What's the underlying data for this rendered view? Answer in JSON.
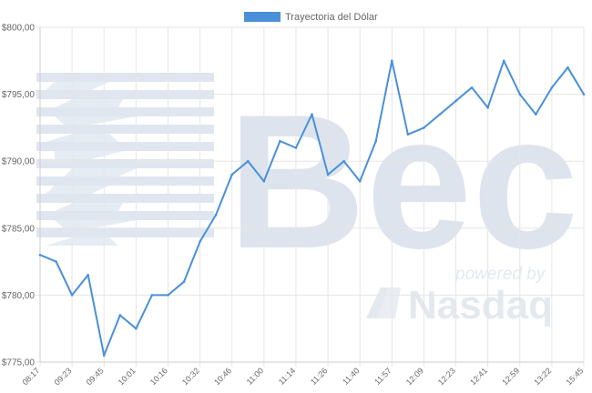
{
  "chart_data": {
    "type": "line",
    "title": "",
    "xlabel": "",
    "ylabel": "",
    "legend": {
      "position": "top-center",
      "entries": [
        "Trayectoria del Dólar"
      ]
    },
    "grid": true,
    "ylim": [
      775,
      800
    ],
    "y_ticks": [
      "$775,00",
      "$780,00",
      "$785,00",
      "$790,00",
      "$795,00",
      "$800,00"
    ],
    "x_ticks": [
      "08:17",
      "09:23",
      "09:45",
      "10:01",
      "10:16",
      "10:32",
      "10:46",
      "11:00",
      "11:14",
      "11:26",
      "11:40",
      "11:57",
      "12:09",
      "12:23",
      "12:41",
      "12:59",
      "13:22",
      "15:45"
    ],
    "series": [
      {
        "name": "Trayectoria del Dólar",
        "color": "#4a90d9",
        "x_index": [
          0,
          0.5,
          1,
          1.5,
          2,
          2.5,
          3,
          3.5,
          4,
          4.5,
          5,
          5.5,
          6,
          6.5,
          7,
          7.5,
          8,
          8.5,
          9,
          9.5,
          10,
          10.5,
          11,
          11.5,
          12,
          12.5,
          13,
          13.5,
          14,
          14.5,
          15,
          15.5,
          16,
          16.5,
          17
        ],
        "values": [
          783.0,
          782.5,
          780.0,
          781.5,
          775.5,
          778.5,
          777.5,
          780.0,
          780.0,
          781.0,
          784.0,
          786.0,
          789.0,
          790.0,
          788.5,
          791.5,
          791.0,
          793.5,
          789.0,
          790.0,
          788.5,
          791.5,
          797.5,
          792.0,
          792.5,
          793.5,
          794.5,
          795.5,
          794.0,
          797.5,
          795.0,
          793.5,
          795.5,
          797.0,
          795.0
        ]
      }
    ]
  },
  "watermark": {
    "brand": "Bec",
    "tagline_top": "powered by",
    "tagline_bottom": "Nasdaq",
    "color": "#dde4ee"
  }
}
